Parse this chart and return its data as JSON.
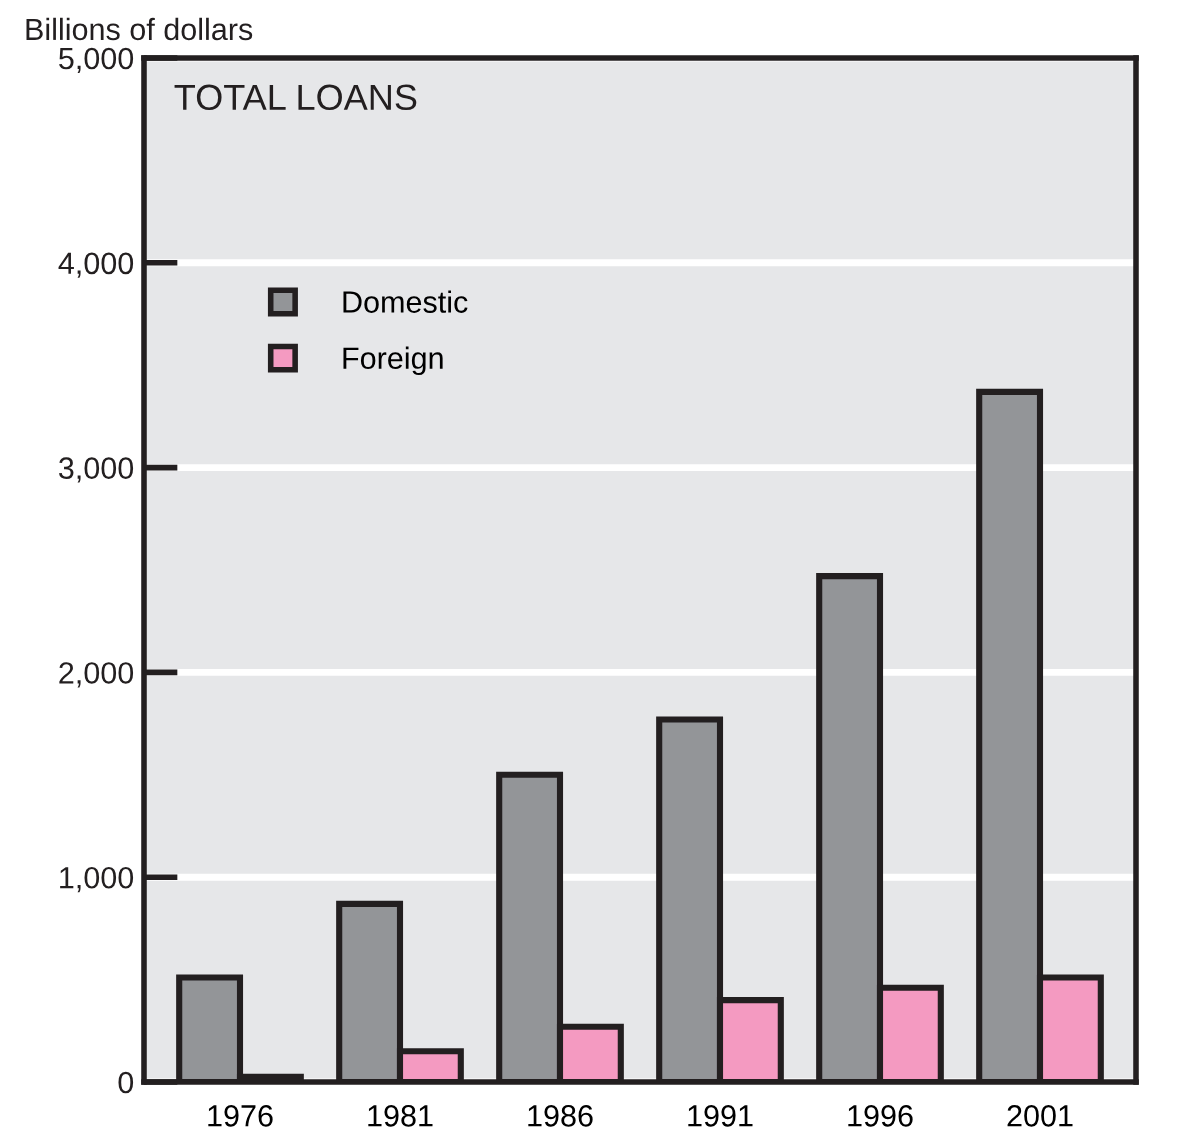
{
  "chart_data": {
    "type": "bar",
    "title": "TOTAL LOANS",
    "ylabel": "Billions of dollars",
    "categories": [
      "1976",
      "1981",
      "1986",
      "1991",
      "1996",
      "2001"
    ],
    "series": [
      {
        "name": "Domestic",
        "color": "#939598",
        "values": [
          510,
          870,
          1500,
          1770,
          2470,
          3370
        ]
      },
      {
        "name": "Foreign",
        "color": "#f49ac1",
        "values": [
          25,
          150,
          270,
          400,
          460,
          510
        ]
      }
    ],
    "ylim": [
      0,
      5000
    ],
    "yticks": [
      {
        "value": 0,
        "label": "0"
      },
      {
        "value": 1000,
        "label": "1,000"
      },
      {
        "value": 2000,
        "label": "2,000"
      },
      {
        "value": 3000,
        "label": "3,000"
      },
      {
        "value": 4000,
        "label": "4,000"
      },
      {
        "value": 5000,
        "label": "5,000"
      }
    ],
    "grid": "y",
    "legend": "top left"
  }
}
